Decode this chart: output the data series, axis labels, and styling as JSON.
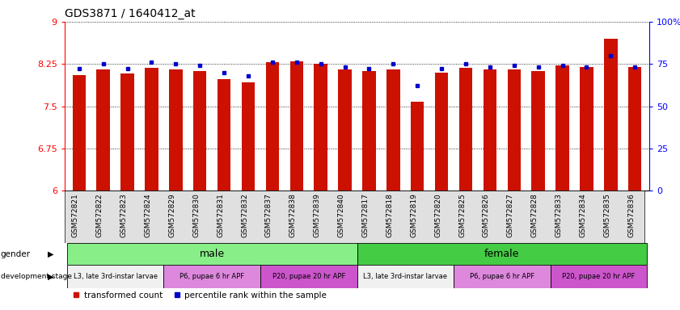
{
  "title": "GDS3871 / 1640412_at",
  "samples": [
    "GSM572821",
    "GSM572822",
    "GSM572823",
    "GSM572824",
    "GSM572829",
    "GSM572830",
    "GSM572831",
    "GSM572832",
    "GSM572837",
    "GSM572838",
    "GSM572839",
    "GSM572840",
    "GSM572817",
    "GSM572818",
    "GSM572819",
    "GSM572820",
    "GSM572825",
    "GSM572826",
    "GSM572827",
    "GSM572828",
    "GSM572833",
    "GSM572834",
    "GSM572835",
    "GSM572836"
  ],
  "transformed_count": [
    8.05,
    8.15,
    8.08,
    8.18,
    8.15,
    8.12,
    7.98,
    7.92,
    8.28,
    8.3,
    8.26,
    8.15,
    8.12,
    8.15,
    7.58,
    8.1,
    8.18,
    8.15,
    8.15,
    8.12,
    8.22,
    8.2,
    8.7,
    8.2
  ],
  "percentile_rank": [
    72,
    75,
    72,
    76,
    75,
    74,
    70,
    68,
    76,
    76,
    75,
    73,
    72,
    75,
    62,
    72,
    75,
    73,
    74,
    73,
    74,
    73,
    80,
    73
  ],
  "ylim_left": [
    6,
    9
  ],
  "ylim_right": [
    0,
    100
  ],
  "yticks_left": [
    6,
    6.75,
    7.5,
    8.25,
    9
  ],
  "yticks_right": [
    0,
    25,
    50,
    75,
    100
  ],
  "bar_color": "#cc1100",
  "dot_color": "#0000cc",
  "gender_groups": [
    {
      "label": "male",
      "start": 0,
      "end": 11,
      "color": "#88ee88"
    },
    {
      "label": "female",
      "start": 12,
      "end": 23,
      "color": "#44cc44"
    }
  ],
  "dev_stage_groups": [
    {
      "label": "L3, late 3rd-instar larvae",
      "start": 0,
      "end": 3,
      "color": "#f0f0f0"
    },
    {
      "label": "P6, pupae 6 hr APF",
      "start": 4,
      "end": 7,
      "color": "#dd88dd"
    },
    {
      "label": "P20, pupae 20 hr APF",
      "start": 8,
      "end": 11,
      "color": "#cc55cc"
    },
    {
      "label": "L3, late 3rd-instar larvae",
      "start": 12,
      "end": 15,
      "color": "#f0f0f0"
    },
    {
      "label": "P6, pupae 6 hr APF",
      "start": 16,
      "end": 19,
      "color": "#dd88dd"
    },
    {
      "label": "P20, pupae 20 hr APF",
      "start": 20,
      "end": 23,
      "color": "#cc55cc"
    }
  ]
}
